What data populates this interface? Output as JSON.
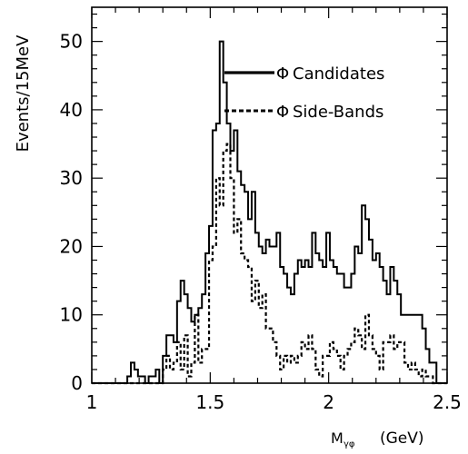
{
  "chart_data": {
    "type": "step-histogram",
    "x": {
      "start": 1.0,
      "bin_width": 0.015,
      "lim": [
        1.0,
        2.5
      ],
      "ticks": [
        1,
        1.5,
        2,
        2.5
      ],
      "tick_labels": [
        "1",
        "1.5",
        "2",
        "2.5"
      ],
      "label_main": "M",
      "label_sub": "γφ",
      "label_unit": "(GeV)"
    },
    "y": {
      "lim": [
        0,
        55
      ],
      "ticks": [
        0,
        10,
        20,
        30,
        40,
        50
      ],
      "tick_labels": [
        "0",
        "10",
        "20",
        "30",
        "40",
        "50"
      ],
      "label": "Events/15MeV"
    },
    "series": [
      {
        "name": "Candidates",
        "style": "solid",
        "values": [
          0,
          0,
          0,
          0,
          0,
          0,
          0,
          0,
          0,
          0,
          1,
          3,
          2,
          1,
          1,
          0,
          1,
          1,
          2,
          0,
          4,
          7,
          7,
          6,
          12,
          15,
          13,
          11,
          9,
          10,
          11,
          13,
          19,
          23,
          37,
          38,
          50,
          44,
          38,
          34,
          37,
          31,
          29,
          28,
          24,
          28,
          22,
          20,
          19,
          21,
          20,
          20,
          22,
          17,
          16,
          14,
          13,
          16,
          18,
          17,
          18,
          17,
          22,
          19,
          18,
          17,
          22,
          18,
          17,
          16,
          16,
          14,
          14,
          16,
          20,
          19,
          26,
          24,
          21,
          18,
          19,
          17,
          15,
          13,
          17,
          15,
          13,
          10,
          10,
          10,
          10,
          10,
          10,
          8,
          5,
          3,
          3,
          0,
          0,
          0
        ]
      },
      {
        "name": "Side-Bands",
        "style": "dashed",
        "values": [
          0,
          0,
          0,
          0,
          0,
          0,
          0,
          0,
          0,
          0,
          0,
          0,
          0,
          0,
          0,
          0,
          0,
          0,
          0,
          0,
          2,
          4,
          2,
          3,
          6,
          2,
          7,
          1,
          3,
          10,
          3,
          5,
          5,
          18,
          20,
          30,
          26,
          34,
          35,
          30,
          22,
          24,
          19,
          18,
          17,
          12,
          15,
          11,
          13,
          8,
          8,
          6,
          4,
          2,
          4,
          3,
          4,
          3,
          4,
          6,
          5,
          7,
          5,
          2,
          1,
          4,
          4,
          6,
          5,
          4,
          2,
          4,
          5,
          6,
          8,
          7,
          5,
          10,
          7,
          5,
          4,
          2,
          6,
          6,
          7,
          5,
          6,
          6,
          3,
          2,
          3,
          2,
          1,
          2,
          1,
          1,
          0,
          0,
          0,
          0
        ]
      }
    ],
    "legend": {
      "position": "top-right",
      "symbol": "Φ",
      "entries": [
        "Candidates",
        "Side-Bands"
      ]
    }
  }
}
